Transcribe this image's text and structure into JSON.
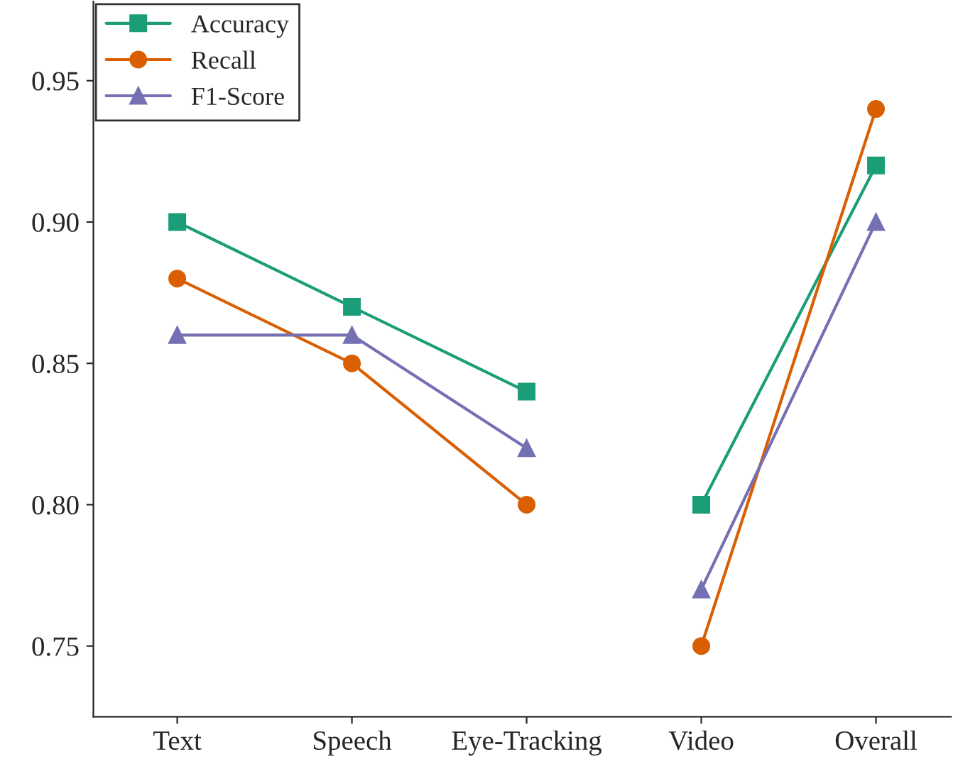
{
  "chart_data": {
    "type": "line",
    "categories": [
      "Text",
      "Speech",
      "Eye-Tracking",
      "Video",
      "Overall"
    ],
    "series": [
      {
        "name": "Accuracy",
        "color": "#1b9e77",
        "marker": "square",
        "values": [
          0.9,
          0.87,
          0.84,
          null,
          null
        ]
      },
      {
        "name": "Recall",
        "color": "#d95f02",
        "marker": "circle",
        "values": [
          0.88,
          0.85,
          0.8,
          null,
          null
        ]
      },
      {
        "name": "F1-Score",
        "color": "#7570b3",
        "marker": "triangle",
        "values": [
          0.86,
          0.86,
          0.82,
          null,
          null
        ]
      },
      {
        "color": "#1b9e77",
        "marker": "square",
        "values": [
          null,
          null,
          null,
          0.8,
          0.92
        ]
      },
      {
        "color": "#d95f02",
        "marker": "circle",
        "values": [
          null,
          null,
          null,
          0.75,
          0.94
        ]
      },
      {
        "color": "#7570b3",
        "marker": "triangle",
        "values": [
          null,
          null,
          null,
          0.77,
          0.9
        ]
      }
    ],
    "ylim": [
      0.725,
      0.978
    ],
    "yticks": [
      0.75,
      {
        "value": 0.8,
        "label": "0.80"
      },
      0.85,
      {
        "value": 0.9,
        "label": "0.90"
      },
      0.95
    ],
    "legend": "top left",
    "grid": false,
    "line_style": "solid"
  }
}
